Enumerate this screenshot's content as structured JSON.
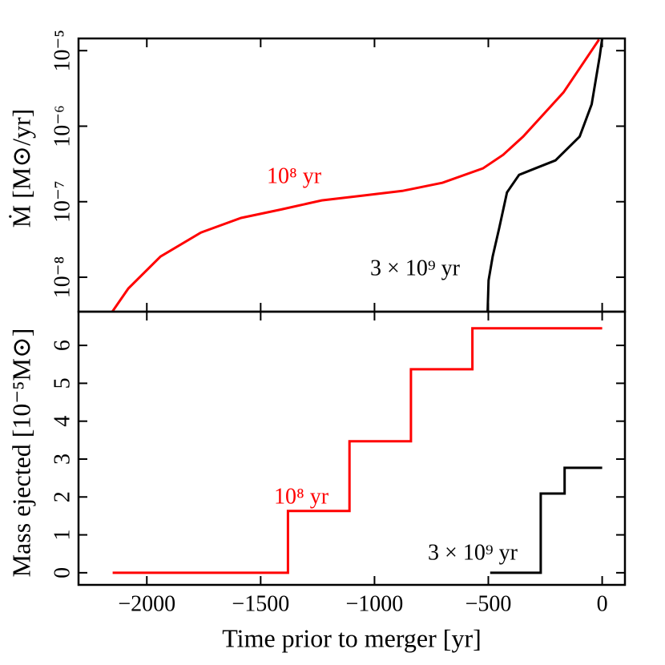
{
  "chart_data": [
    {
      "type": "line",
      "ylabel": "Ṁ [M⊙/yr]",
      "log_y": true,
      "xlim": [
        -2300,
        100
      ],
      "xticks": [
        -2000,
        -1500,
        -1000,
        -500,
        0
      ],
      "ylim": [
        3.5e-09,
        1.45e-05
      ],
      "yticks": [
        {
          "value": 1e-08,
          "label": "10⁻⁸"
        },
        {
          "value": 1e-07,
          "label": "10⁻⁷"
        },
        {
          "value": 1e-06,
          "label": "10⁻⁶"
        },
        {
          "value": 1e-05,
          "label": "10⁻⁵"
        }
      ],
      "series": [
        {
          "name": "10⁸ yr",
          "color": "#ff0000",
          "x": [
            -2152,
            -2081,
            -1940,
            -1763,
            -1586,
            -1409,
            -1232,
            -1055,
            -878,
            -701,
            -524,
            -435,
            -347,
            -170,
            -14
          ],
          "values": [
            3.49e-09,
            7.1e-09,
            1.88e-08,
            3.9e-08,
            6.1e-08,
            7.9e-08,
            1.04e-07,
            1.2e-07,
            1.39e-07,
            1.78e-07,
            2.76e-07,
            4.18e-07,
            7.3e-07,
            2.8e-06,
            1.4e-05
          ]
        },
        {
          "name": "3 × 10⁹ yr",
          "color": "#000000",
          "x": [
            -503,
            -499,
            -481,
            -453,
            -418,
            -365,
            -294,
            -205,
            -99,
            -46,
            -11,
            0
          ],
          "values": [
            3.5e-09,
            9.1e-09,
            1.88e-08,
            4.4e-08,
            1.33e-07,
            2.27e-07,
            2.76e-07,
            3.52e-07,
            7.3e-07,
            1.95e-06,
            8.4e-06,
            1.45e-05
          ]
        }
      ]
    },
    {
      "type": "line",
      "ylabel": "Mass ejected [10⁻⁵M⊙]",
      "xlabel": "Time prior to merger [yr]",
      "xlim": [
        -2300,
        100
      ],
      "xticks": [
        {
          "value": -2000,
          "label": "−2000"
        },
        {
          "value": -1500,
          "label": "−1500"
        },
        {
          "value": -1000,
          "label": "−1000"
        },
        {
          "value": -500,
          "label": "−500"
        },
        0
      ],
      "ylim": [
        -0.32,
        6.89
      ],
      "yticks": [
        0,
        1,
        2,
        3,
        4,
        5,
        6
      ],
      "series": [
        {
          "name": "10⁸ yr",
          "color": "#ff0000",
          "x": [
            -2150,
            -1380,
            -1380,
            -1110,
            -1110,
            -840,
            -840,
            -570,
            -570,
            0
          ],
          "values": [
            0,
            0,
            1.63,
            1.63,
            3.47,
            3.47,
            5.37,
            5.37,
            6.45,
            6.45
          ]
        },
        {
          "name": "3 × 10⁹ yr",
          "color": "#000000",
          "x": [
            -492,
            -270,
            -270,
            -165,
            -165,
            0
          ],
          "values": [
            0,
            0,
            2.09,
            2.09,
            2.77,
            2.77
          ]
        }
      ]
    }
  ]
}
